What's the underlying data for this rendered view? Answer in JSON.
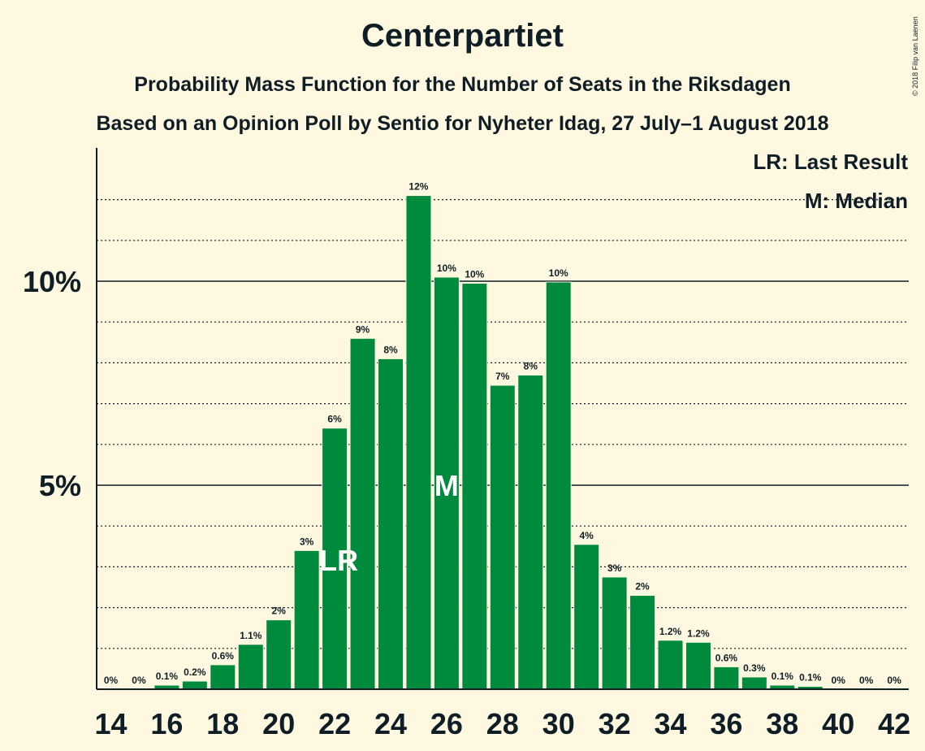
{
  "chart_data": {
    "type": "bar",
    "title": "Centerpartiet",
    "subtitle": "Probability Mass Function for the Number of Seats in the Riksdagen",
    "subtitle2": "Based on an Opinion Poll by Sentio for Nyheter Idag, 27 July–1 August 2018",
    "copyright": "© 2018 Filip van Laenen",
    "legend": {
      "lr": "LR: Last Result",
      "m": "M: Median",
      "placement": "top-right"
    },
    "x": [
      14,
      15,
      16,
      17,
      18,
      19,
      20,
      21,
      22,
      23,
      24,
      25,
      26,
      27,
      28,
      29,
      30,
      31,
      32,
      33,
      34,
      35,
      36,
      37,
      38,
      39,
      40,
      41,
      42
    ],
    "values": [
      0,
      0,
      0.1,
      0.2,
      0.6,
      1.1,
      1.7,
      3.4,
      6.4,
      8.6,
      8.1,
      12.1,
      10.1,
      9.95,
      7.45,
      7.7,
      9.98,
      3.55,
      2.75,
      2.3,
      1.2,
      1.15,
      0.55,
      0.3,
      0.1,
      0.07,
      0,
      0,
      0
    ],
    "labels": [
      "0%",
      "0%",
      "0.1%",
      "0.2%",
      "0.6%",
      "1.1%",
      "2%",
      "3%",
      "6%",
      "9%",
      "8%",
      "12%",
      "10%",
      "10%",
      "7%",
      "8%",
      "10%",
      "4%",
      "3%",
      "2%",
      "1.2%",
      "1.2%",
      "0.6%",
      "0.3%",
      "0.1%",
      "0.1%",
      "0%",
      "0%",
      "0%"
    ],
    "x_tick_labels": [
      "14",
      "16",
      "18",
      "20",
      "22",
      "24",
      "26",
      "28",
      "30",
      "32",
      "34",
      "36",
      "38",
      "40",
      "42"
    ],
    "y_tick_labels": [
      "5%",
      "10%"
    ],
    "ylim": [
      0,
      13
    ],
    "markers": {
      "last_result": {
        "seat": 22,
        "label": "LR"
      },
      "median": {
        "seat": 26,
        "label": "M"
      }
    },
    "bar_color": "#008a3e",
    "grid": "dotted every 1%, solid at 5% and 10%"
  }
}
